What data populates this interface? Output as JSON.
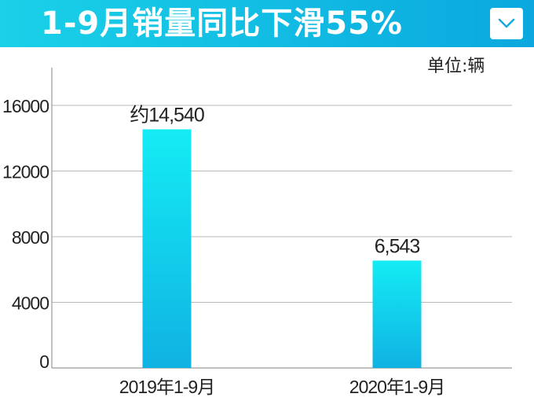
{
  "header": {
    "title": "1-9月销量同比下滑55%",
    "collapse_icon": "chevron-down-icon",
    "background_start": "#1ad1e8",
    "background_end": "#0aa8de"
  },
  "chart_data": {
    "type": "bar",
    "categories": [
      "2019年1-9月",
      "2020年1-9月"
    ],
    "values": [
      14540,
      6543
    ],
    "value_labels": [
      "约14,540",
      "6,543"
    ],
    "unit_label": "单位:辆",
    "ylim": [
      0,
      16000
    ],
    "yticks": [
      0,
      4000,
      8000,
      12000,
      16000
    ],
    "grid": true,
    "bar_color_top": "#14ecf4",
    "bar_color_bottom": "#10b2e2"
  }
}
